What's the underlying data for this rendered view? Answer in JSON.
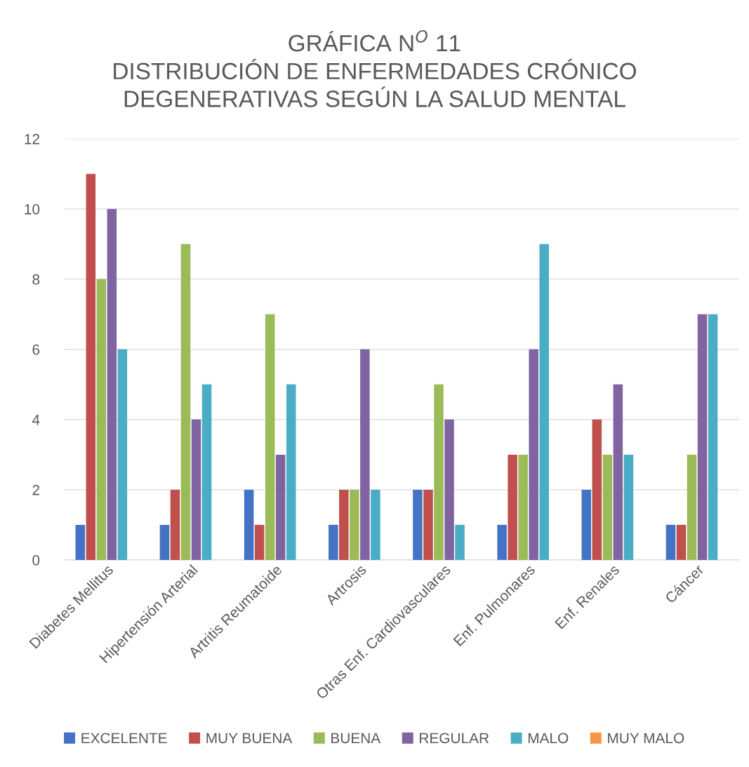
{
  "chart_data": {
    "type": "bar",
    "title": "GRÁFICA N$^{O}$ 11\nDISTRIBUCIÓN DE ENFERMEDADES CRÓNICO\nDEGENERATIVAS SEGÚN LA SALUD MENTAL",
    "categories": [
      "Diabetes Mellitus",
      "Hipertensión Arterial",
      "Artritis Reumatoide",
      "Artrosis",
      "Otras Enf. Cardiovasculares",
      "Enf. Pulmonares",
      "Enf. Renales",
      "Cáncer"
    ],
    "series": [
      {
        "name": "EXCELENTE",
        "color": "#4472c4",
        "values": [
          1,
          1,
          2,
          1,
          2,
          1,
          2,
          1
        ]
      },
      {
        "name": "MUY BUENA",
        "color": "#c0504d",
        "values": [
          11,
          2,
          1,
          2,
          2,
          3,
          4,
          1
        ]
      },
      {
        "name": "BUENA",
        "color": "#9bbb59",
        "values": [
          8,
          9,
          7,
          2,
          5,
          3,
          3,
          3
        ]
      },
      {
        "name": "REGULAR",
        "color": "#8064a2",
        "values": [
          10,
          4,
          3,
          6,
          4,
          6,
          5,
          7
        ]
      },
      {
        "name": "MALO",
        "color": "#4bacc6",
        "values": [
          6,
          5,
          5,
          2,
          1,
          9,
          3,
          7
        ]
      },
      {
        "name": "MUY MALO",
        "color": "#f79646",
        "values": [
          0,
          0,
          0,
          0,
          0,
          0,
          0,
          0
        ]
      }
    ],
    "ylim": [
      0,
      12
    ],
    "yticks": [
      0,
      2,
      4,
      6,
      8,
      10,
      12
    ],
    "grid": "y",
    "legend": "bottom"
  }
}
